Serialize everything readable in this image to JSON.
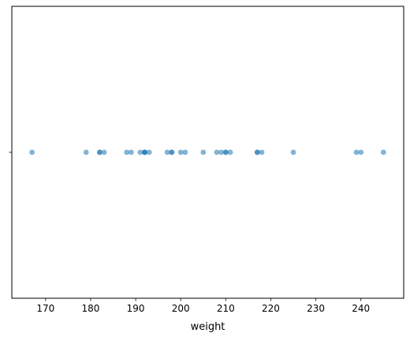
{
  "chart_data": {
    "type": "scatter",
    "subtype": "strip",
    "orientation": "horizontal",
    "title": "",
    "xlabel": "weight",
    "ylabel": "",
    "xlim": [
      162.5,
      249.5
    ],
    "xticks": [
      170,
      180,
      190,
      200,
      210,
      220,
      230,
      240
    ],
    "grid": false,
    "legend": null,
    "point_color": "#1f77b4",
    "point_alpha": 0.55,
    "x": [
      167,
      179,
      182,
      182,
      183,
      188,
      189,
      191,
      192,
      192,
      192,
      193,
      197,
      198,
      198,
      200,
      201,
      205,
      208,
      209,
      210,
      210,
      211,
      217,
      217,
      218,
      225,
      239,
      240,
      245
    ]
  }
}
